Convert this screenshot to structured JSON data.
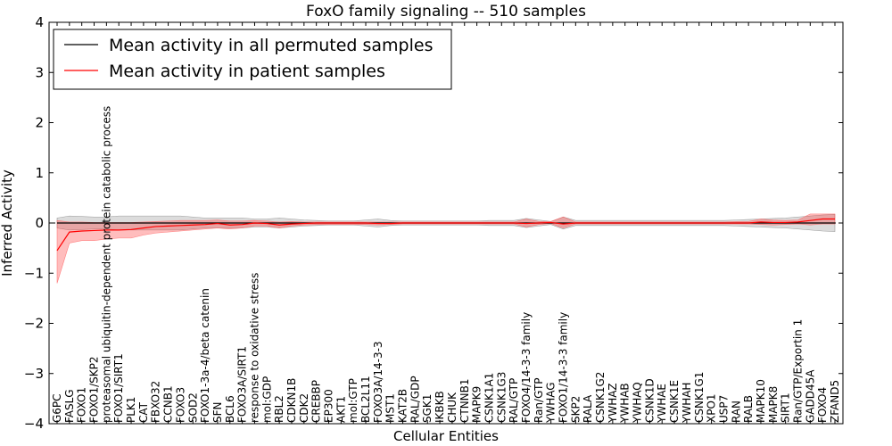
{
  "chart_data": {
    "type": "line",
    "title": "FoxO family signaling -- 510 samples",
    "xlabel": "Cellular Entities",
    "ylabel": "Inferred Activity",
    "ylim": [
      -4,
      4
    ],
    "yticks": [
      "4",
      "3",
      "2",
      "1",
      "0",
      "−1",
      "−2",
      "−3",
      "−4"
    ],
    "legend_position": "top-left",
    "categories": [
      "G6PC",
      "FASLG",
      "FOXO1",
      "FOXO1/SKP2",
      "proteasomal ubiquitin-dependent protein catabolic process",
      "FOXO1/SIRT1",
      "PLK1",
      "CAT",
      "FBXO32",
      "CCNB1",
      "FOXO3",
      "SOD2",
      "FOXO1-3a-4/beta catenin",
      "SFN",
      "BCL6",
      "FOXO3A/SIRT1",
      "response to oxidative stress",
      "mol:GDP",
      "RBL2",
      "CDKN1B",
      "CDK2",
      "CREBBP",
      "EP300",
      "AKT1",
      "mol:GTP",
      "BCL2L11",
      "FOXO3A/14-3-3",
      "MST1",
      "KAT2B",
      "RAL/GDP",
      "SGK1",
      "IKBKB",
      "CHUK",
      "CTNNB1",
      "MAPK9",
      "CSNK1A1",
      "CSNK1G3",
      "RAL/GTP",
      "FOXO4/14-3-3 family",
      "Ran/GTP",
      "YWHAG",
      "FOXO1/14-3-3 family",
      "SKP2",
      "RALA",
      "CSNK1G2",
      "YWHAZ",
      "YWHAB",
      "YWHAQ",
      "CSNK1D",
      "YWHAE",
      "CSNK1E",
      "YWHAH",
      "CSNK1G1",
      "XPO1",
      "USP7",
      "RAN",
      "RALB",
      "MAPK10",
      "MAPK8",
      "SIRT1",
      "Ran/GTP/Exportin 1",
      "GADD45A",
      "FOXO4",
      "ZFAND5"
    ],
    "series": [
      {
        "name": "Mean activity in all permuted samples",
        "color": "#000000",
        "values": [
          0,
          0,
          0,
          0,
          0,
          0,
          0,
          0,
          0,
          0,
          0,
          0,
          0,
          0,
          0,
          0,
          0,
          0,
          0,
          0,
          0,
          0,
          0,
          0,
          0,
          0,
          0,
          0,
          0,
          0,
          0,
          0,
          0,
          0,
          0,
          0,
          0,
          0,
          0,
          0,
          0,
          0,
          0,
          0,
          0,
          0,
          0,
          0,
          0,
          0,
          0,
          0,
          0,
          0,
          0,
          0,
          0,
          0,
          0,
          0,
          0,
          0,
          0,
          0
        ],
        "lower": [
          -0.1,
          -0.14,
          -0.13,
          -0.12,
          -0.12,
          -0.14,
          -0.14,
          -0.14,
          -0.14,
          -0.14,
          -0.14,
          -0.12,
          -0.1,
          -0.1,
          -0.1,
          -0.1,
          -0.08,
          -0.08,
          -0.1,
          -0.08,
          -0.06,
          -0.05,
          -0.04,
          -0.04,
          -0.04,
          -0.06,
          -0.08,
          -0.05,
          -0.04,
          -0.04,
          -0.04,
          -0.04,
          -0.04,
          -0.04,
          -0.04,
          -0.05,
          -0.05,
          -0.05,
          -0.09,
          -0.06,
          -0.03,
          -0.12,
          -0.05,
          -0.05,
          -0.05,
          -0.05,
          -0.05,
          -0.05,
          -0.05,
          -0.05,
          -0.05,
          -0.05,
          -0.05,
          -0.05,
          -0.05,
          -0.06,
          -0.07,
          -0.08,
          -0.09,
          -0.1,
          -0.12,
          -0.14,
          -0.16,
          -0.17
        ],
        "upper": [
          0.1,
          0.14,
          0.13,
          0.12,
          0.12,
          0.14,
          0.14,
          0.14,
          0.14,
          0.14,
          0.14,
          0.12,
          0.1,
          0.1,
          0.1,
          0.1,
          0.08,
          0.08,
          0.1,
          0.08,
          0.06,
          0.05,
          0.04,
          0.04,
          0.04,
          0.06,
          0.08,
          0.05,
          0.04,
          0.04,
          0.04,
          0.04,
          0.04,
          0.04,
          0.04,
          0.05,
          0.05,
          0.05,
          0.09,
          0.06,
          0.03,
          0.12,
          0.05,
          0.05,
          0.05,
          0.05,
          0.05,
          0.05,
          0.05,
          0.05,
          0.05,
          0.05,
          0.05,
          0.05,
          0.05,
          0.06,
          0.07,
          0.08,
          0.09,
          0.1,
          0.12,
          0.14,
          0.16,
          0.17
        ]
      },
      {
        "name": "Mean activity in patient samples",
        "color": "#ff0000",
        "values": [
          -0.55,
          -0.18,
          -0.16,
          -0.15,
          -0.14,
          -0.14,
          -0.13,
          -0.1,
          -0.07,
          -0.06,
          -0.05,
          -0.04,
          -0.03,
          -0.01,
          -0.04,
          -0.03,
          0,
          -0.01,
          -0.04,
          -0.02,
          -0.01,
          0,
          0,
          0,
          0,
          0,
          -0.01,
          -0.01,
          0,
          0,
          0,
          0,
          0,
          0,
          0,
          0,
          0,
          0,
          -0.01,
          0,
          0.01,
          -0.02,
          0,
          0,
          0,
          0,
          0,
          0,
          0,
          0,
          0,
          0,
          0,
          0,
          0,
          0,
          0,
          0.02,
          0.01,
          0.01,
          0.02,
          0.05,
          0.08,
          0.08
        ],
        "lower": [
          -1.2,
          -0.4,
          -0.35,
          -0.35,
          -0.32,
          -0.3,
          -0.3,
          -0.24,
          -0.2,
          -0.18,
          -0.16,
          -0.14,
          -0.12,
          -0.1,
          -0.12,
          -0.1,
          -0.06,
          -0.06,
          -0.1,
          -0.06,
          -0.04,
          -0.03,
          -0.03,
          -0.03,
          -0.03,
          -0.03,
          -0.04,
          -0.03,
          -0.02,
          -0.02,
          -0.02,
          -0.02,
          -0.02,
          -0.02,
          -0.02,
          -0.02,
          -0.02,
          -0.02,
          -0.08,
          -0.03,
          -0.01,
          -0.1,
          -0.02,
          -0.02,
          -0.02,
          -0.02,
          -0.02,
          -0.02,
          -0.02,
          -0.02,
          -0.02,
          -0.02,
          -0.02,
          -0.02,
          -0.02,
          -0.02,
          -0.02,
          -0.03,
          -0.04,
          -0.03,
          -0.02,
          -0.04,
          -0.02,
          -0.02
        ],
        "upper": [
          0.05,
          0.02,
          0.02,
          0.01,
          0.01,
          0.01,
          0.01,
          0.02,
          0.03,
          0.04,
          0.05,
          0.05,
          0.05,
          0.06,
          0.04,
          0.04,
          0.05,
          0.04,
          0.02,
          0.03,
          0.02,
          0.02,
          0.02,
          0.02,
          0.02,
          0.02,
          0.02,
          0.02,
          0.02,
          0.02,
          0.02,
          0.02,
          0.02,
          0.02,
          0.02,
          0.02,
          0.02,
          0.02,
          0.08,
          0.03,
          0.03,
          0.12,
          0.02,
          0.02,
          0.02,
          0.02,
          0.02,
          0.02,
          0.02,
          0.02,
          0.02,
          0.02,
          0.02,
          0.02,
          0.02,
          0.03,
          0.03,
          0.08,
          0.06,
          0.05,
          0.06,
          0.18,
          0.18,
          0.18
        ]
      }
    ]
  }
}
